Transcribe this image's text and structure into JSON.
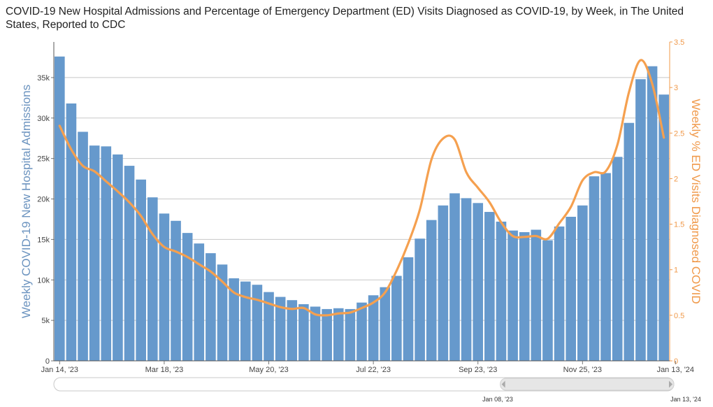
{
  "title": "COVID-19 New Hospital Admissions and Percentage of Emergency Department (ED) Visits Diagnosed as COVID-19, by Week, in The United States, Reported to CDC",
  "colors": {
    "bar": "#6699cc",
    "line": "#f5a04f",
    "left_axis": "#6b93bf",
    "right_axis": "#f0994a",
    "grid": "#c8c8c8"
  },
  "chart_data": {
    "type": "bar",
    "title": "COVID-19 New Hospital Admissions and Percentage of Emergency Department (ED) Visits Diagnosed as COVID-19, by Week, in The United States, Reported to CDC",
    "xlabel": "",
    "ylabel": "Weekly COVID-19 New Hospital Admissions",
    "y2label": "Weekly % ED Visits Diagnosed COVID",
    "ylim": [
      0,
      39400
    ],
    "y2lim": [
      0,
      3.5
    ],
    "yticks": [
      0,
      5000,
      10000,
      15000,
      20000,
      25000,
      30000,
      35000
    ],
    "ytick_labels": [
      "0",
      "5k",
      "10k",
      "15k",
      "20k",
      "25k",
      "30k",
      "35k"
    ],
    "y2ticks": [
      0,
      0.5,
      1,
      1.5,
      2,
      2.5,
      3,
      3.5
    ],
    "y2tick_labels": [
      "0",
      "0.5",
      "1",
      "1.5",
      "2",
      "2.5",
      "3",
      "3.5"
    ],
    "xtick_labels": [
      {
        "label": "Jan 14, '23",
        "index": 0
      },
      {
        "label": "Mar 18, '23",
        "index": 9
      },
      {
        "label": "May 20, '23",
        "index": 18
      },
      {
        "label": "Jul 22, '23",
        "index": 27
      },
      {
        "label": "Sep 23, '23",
        "index": 36
      },
      {
        "label": "Nov 25, '23",
        "index": 45
      },
      {
        "label": "Jan 13, '24",
        "index": 53
      }
    ],
    "grid": true,
    "categories": [
      "Jan 14, '23",
      "Jan 21, '23",
      "Jan 28, '23",
      "Feb 04, '23",
      "Feb 11, '23",
      "Feb 18, '23",
      "Feb 25, '23",
      "Mar 04, '23",
      "Mar 11, '23",
      "Mar 18, '23",
      "Mar 25, '23",
      "Apr 01, '23",
      "Apr 08, '23",
      "Apr 15, '23",
      "Apr 22, '23",
      "Apr 29, '23",
      "May 06, '23",
      "May 13, '23",
      "May 20, '23",
      "May 27, '23",
      "Jun 03, '23",
      "Jun 10, '23",
      "Jun 17, '23",
      "Jun 24, '23",
      "Jul 01, '23",
      "Jul 08, '23",
      "Jul 15, '23",
      "Jul 22, '23",
      "Jul 29, '23",
      "Aug 05, '23",
      "Aug 12, '23",
      "Aug 19, '23",
      "Aug 26, '23",
      "Sep 02, '23",
      "Sep 09, '23",
      "Sep 16, '23",
      "Sep 23, '23",
      "Sep 30, '23",
      "Oct 07, '23",
      "Oct 14, '23",
      "Oct 21, '23",
      "Oct 28, '23",
      "Nov 04, '23",
      "Nov 11, '23",
      "Nov 18, '23",
      "Nov 25, '23",
      "Dec 02, '23",
      "Dec 09, '23",
      "Dec 16, '23",
      "Dec 23, '23",
      "Dec 30, '23",
      "Jan 06, '24",
      "Jan 13, '24"
    ],
    "series": [
      {
        "name": "Weekly COVID-19 New Hospital Admissions",
        "type": "bar",
        "axis": "left",
        "values": [
          37600,
          31800,
          28300,
          26600,
          26500,
          25500,
          24100,
          22400,
          20200,
          18200,
          17300,
          15800,
          14500,
          13300,
          11900,
          10200,
          9800,
          9400,
          8500,
          7900,
          7500,
          7000,
          6700,
          6400,
          6500,
          6400,
          7200,
          8100,
          9100,
          10500,
          12800,
          15100,
          17400,
          19200,
          20700,
          20100,
          19500,
          18400,
          17200,
          16100,
          15900,
          16200,
          14900,
          16600,
          17800,
          19200,
          22800,
          23200,
          25200,
          29400,
          34800,
          36400,
          32900
        ]
      },
      {
        "name": "Weekly % ED Visits Diagnosed COVID",
        "type": "line",
        "axis": "right",
        "values": [
          2.58,
          2.32,
          2.14,
          2.08,
          1.97,
          1.86,
          1.74,
          1.59,
          1.39,
          1.25,
          1.2,
          1.14,
          1.06,
          0.98,
          0.87,
          0.75,
          0.7,
          0.67,
          0.63,
          0.59,
          0.57,
          0.58,
          0.51,
          0.5,
          0.52,
          0.53,
          0.58,
          0.64,
          0.75,
          0.99,
          1.29,
          1.66,
          2.21,
          2.44,
          2.43,
          2.07,
          1.9,
          1.74,
          1.52,
          1.37,
          1.36,
          1.37,
          1.34,
          1.51,
          1.69,
          1.98,
          2.07,
          2.08,
          2.37,
          2.95,
          3.3,
          3.04,
          2.45
        ]
      }
    ]
  },
  "navigator": {
    "left_label": "Jan 08, '23",
    "right_label": "Jan 13, '24",
    "selection_start": 0.72,
    "selection_end": 1.0
  }
}
